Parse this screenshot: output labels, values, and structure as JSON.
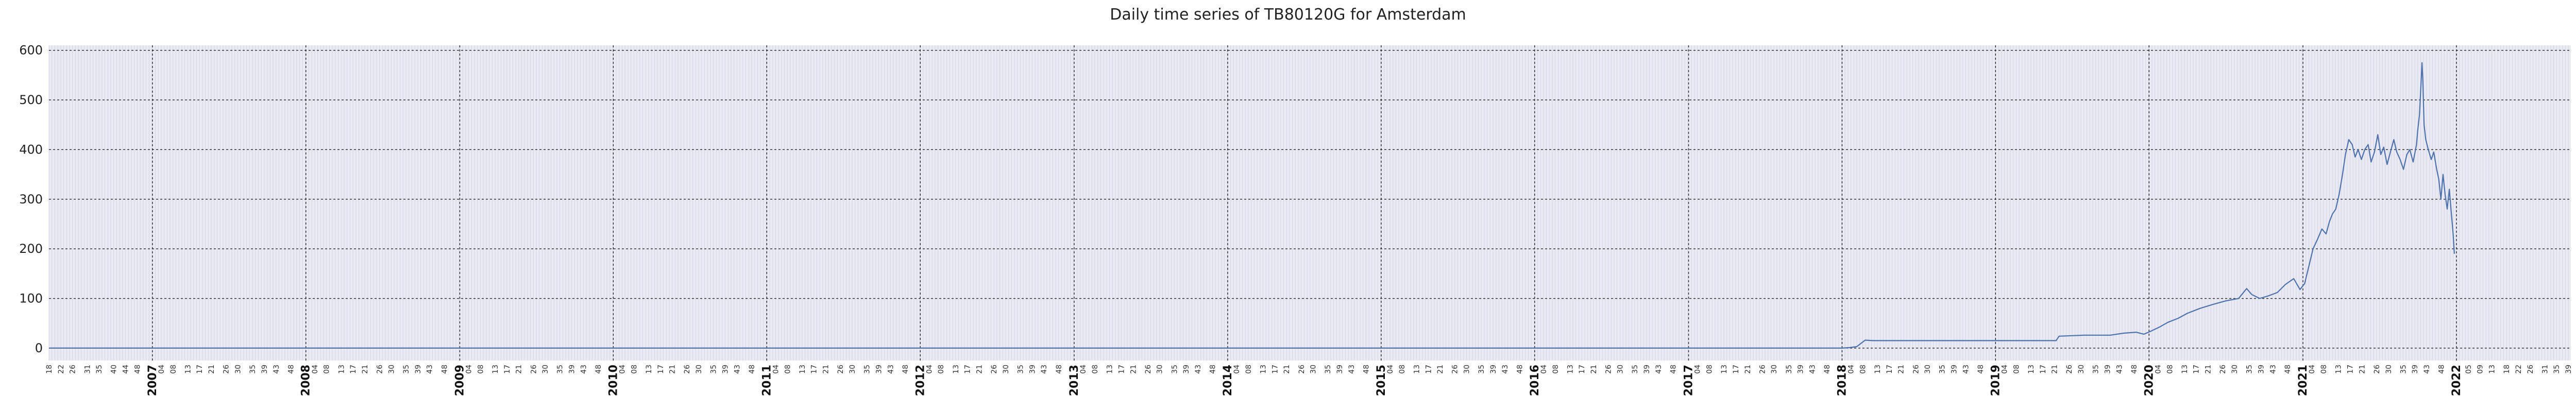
{
  "chart_data": {
    "type": "line",
    "title": "Daily time series of TB80120G for Amsterdam",
    "xlabel": "",
    "ylabel": "",
    "xlim": [
      "2006-04-30",
      "2022-09-30"
    ],
    "ylim": [
      -25,
      610
    ],
    "y_ticks": [
      0,
      100,
      200,
      300,
      400,
      500,
      600
    ],
    "year_ticks": [
      "2007",
      "2008",
      "2009",
      "2010",
      "2011",
      "2012",
      "2013",
      "2014",
      "2015",
      "2016",
      "2017",
      "2018",
      "2019",
      "2020",
      "2021",
      "2022"
    ],
    "week_ticks_per_year": [
      "04",
      "08",
      "13",
      "17",
      "21",
      "26",
      "30",
      "35",
      "39",
      "43",
      "48"
    ],
    "week_ticks_before_2007": [
      "18",
      "22",
      "26",
      "31",
      "35",
      "40",
      "44",
      "48"
    ],
    "week_ticks_after_2022": [
      "05",
      "09",
      "13",
      "18",
      "22",
      "26",
      "31",
      "35",
      "39"
    ],
    "grid": true,
    "legend": "none",
    "colors": {
      "line": "#4c72b0",
      "background": "#eaeaf2",
      "major_grid": "#222222",
      "minor_grid": "#d4d4e6"
    },
    "series": [
      {
        "values": [
          [
            "2006-05-01",
            0
          ],
          [
            "2017-12-31",
            0
          ],
          [
            "2018-01-20",
            1
          ],
          [
            "2018-02-05",
            3
          ],
          [
            "2018-02-25",
            16
          ],
          [
            "2018-03-15",
            15
          ],
          [
            "2018-06-01",
            15
          ],
          [
            "2018-09-01",
            15
          ],
          [
            "2018-12-01",
            15
          ],
          [
            "2019-03-01",
            15
          ],
          [
            "2019-05-25",
            15
          ],
          [
            "2019-06-01",
            24
          ],
          [
            "2019-08-01",
            26
          ],
          [
            "2019-10-01",
            26
          ],
          [
            "2019-11-01",
            30
          ],
          [
            "2019-12-01",
            32
          ],
          [
            "2019-12-20",
            28
          ],
          [
            "2020-01-05",
            34
          ],
          [
            "2020-01-25",
            42
          ],
          [
            "2020-02-15",
            52
          ],
          [
            "2020-03-10",
            60
          ],
          [
            "2020-04-01",
            70
          ],
          [
            "2020-05-01",
            80
          ],
          [
            "2020-06-01",
            88
          ],
          [
            "2020-07-01",
            95
          ],
          [
            "2020-08-01",
            100
          ],
          [
            "2020-08-20",
            120
          ],
          [
            "2020-09-01",
            108
          ],
          [
            "2020-09-20",
            100
          ],
          [
            "2020-10-10",
            105
          ],
          [
            "2020-11-01",
            112
          ],
          [
            "2020-11-20",
            128
          ],
          [
            "2020-12-10",
            140
          ],
          [
            "2020-12-25",
            118
          ],
          [
            "2021-01-05",
            130
          ],
          [
            "2021-01-15",
            165
          ],
          [
            "2021-01-25",
            200
          ],
          [
            "2021-02-05",
            220
          ],
          [
            "2021-02-15",
            240
          ],
          [
            "2021-02-25",
            230
          ],
          [
            "2021-03-05",
            255
          ],
          [
            "2021-03-12",
            270
          ],
          [
            "2021-03-20",
            280
          ],
          [
            "2021-03-28",
            310
          ],
          [
            "2021-04-05",
            350
          ],
          [
            "2021-04-12",
            390
          ],
          [
            "2021-04-20",
            420
          ],
          [
            "2021-04-28",
            410
          ],
          [
            "2021-05-05",
            385
          ],
          [
            "2021-05-12",
            400
          ],
          [
            "2021-05-20",
            380
          ],
          [
            "2021-05-28",
            400
          ],
          [
            "2021-06-05",
            410
          ],
          [
            "2021-06-12",
            375
          ],
          [
            "2021-06-20",
            395
          ],
          [
            "2021-06-28",
            430
          ],
          [
            "2021-07-05",
            390
          ],
          [
            "2021-07-12",
            405
          ],
          [
            "2021-07-20",
            370
          ],
          [
            "2021-07-28",
            395
          ],
          [
            "2021-08-05",
            420
          ],
          [
            "2021-08-12",
            395
          ],
          [
            "2021-08-20",
            380
          ],
          [
            "2021-08-28",
            360
          ],
          [
            "2021-09-05",
            390
          ],
          [
            "2021-09-12",
            400
          ],
          [
            "2021-09-20",
            375
          ],
          [
            "2021-09-28",
            410
          ],
          [
            "2021-10-01",
            440
          ],
          [
            "2021-10-05",
            470
          ],
          [
            "2021-10-08",
            520
          ],
          [
            "2021-10-11",
            575
          ],
          [
            "2021-10-13",
            540
          ],
          [
            "2021-10-16",
            450
          ],
          [
            "2021-10-20",
            420
          ],
          [
            "2021-10-26",
            400
          ],
          [
            "2021-11-02",
            380
          ],
          [
            "2021-11-08",
            395
          ],
          [
            "2021-11-15",
            360
          ],
          [
            "2021-11-20",
            340
          ],
          [
            "2021-11-25",
            300
          ],
          [
            "2021-11-30",
            350
          ],
          [
            "2021-12-05",
            310
          ],
          [
            "2021-12-10",
            280
          ],
          [
            "2021-12-15",
            320
          ],
          [
            "2021-12-20",
            270
          ],
          [
            "2021-12-24",
            230
          ],
          [
            "2021-12-27",
            190
          ]
        ]
      }
    ]
  }
}
